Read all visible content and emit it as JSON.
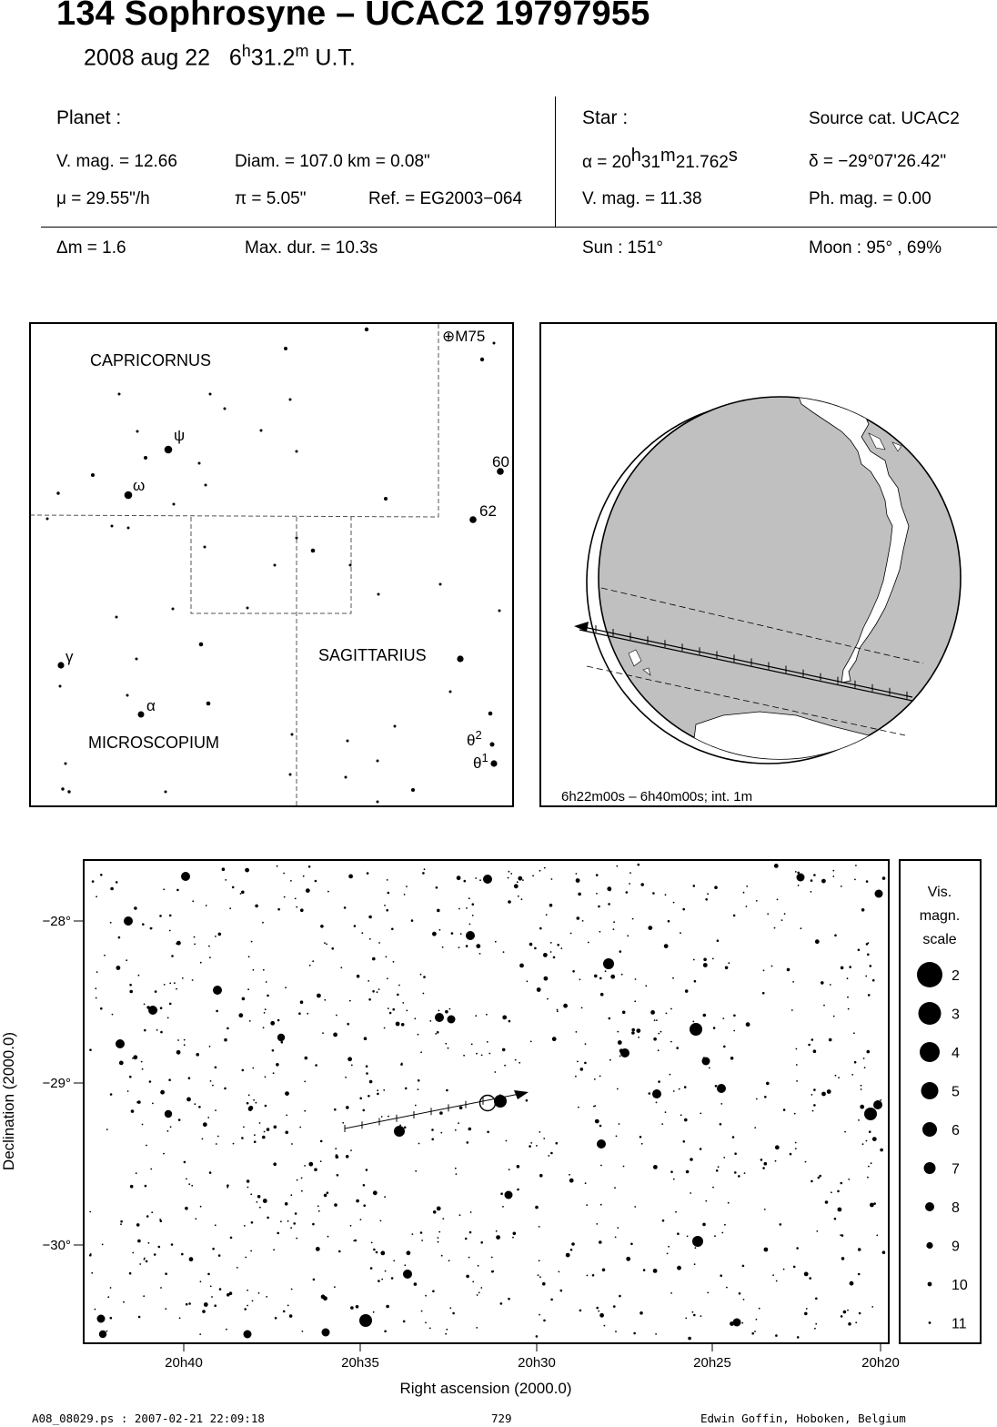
{
  "header": {
    "title": "134 Sophrosyne  –  UCAC2 19797955",
    "date": "2008 aug 22",
    "time_h": "6",
    "time_sup_h": "h",
    "time_mid": "31.2",
    "time_sup_m": "m",
    "time_ut": " U.T."
  },
  "planet": {
    "label": "Planet :",
    "vmag": "V. mag. = 12.66",
    "diam": "Diam. = 107.0 km = 0.08\"",
    "mu": "μ =  29.55\"/h",
    "pi": "π =  5.05\"",
    "ref": "Ref. = EG2003−064"
  },
  "star": {
    "label": "Star :",
    "source": "Source cat.  UCAC2",
    "alpha_a": "α = 20",
    "alpha_h": "h",
    "alpha_b": "31",
    "alpha_m": "m",
    "alpha_c": "21.762",
    "alpha_s": "s",
    "delta": "δ = −29°07'26.42\"",
    "vmag": "V. mag. = 11.38",
    "phmag": "Ph. mag. =  0.00"
  },
  "summary": {
    "dm": "Δm = 1.6",
    "maxdur": "Max. dur. = 10.3s",
    "sun": "Sun : 151°",
    "moon": "Moon :  95° , 69%"
  },
  "finder": {
    "constellations": [
      "CAPRICORNUS",
      "SAGITTARIUS",
      "MICROSCOPIUM"
    ],
    "labels": {
      "m75": "⊕M75",
      "s60": "60",
      "s62": "62",
      "psi": "ψ",
      "omega": "ω",
      "gamma": "γ",
      "alpha": "α",
      "theta2": "θ",
      "theta2_sup": "2",
      "theta1": "θ",
      "theta1_sup": "1"
    }
  },
  "globe": {
    "caption": "6h22m00s –  6h40m00s; int.  1m"
  },
  "starmap": {
    "x_ticks": [
      "20h40",
      "20h35",
      "20h30",
      "20h25",
      "20h20"
    ],
    "y_ticks": [
      "−28°",
      "−29°",
      "−30°"
    ],
    "xlabel": "Right ascension (2000.0)",
    "ylabel": "Declination (2000.0)"
  },
  "legend": {
    "title_lines": [
      "Vis.",
      "magn.",
      "scale"
    ],
    "mags": [
      "2",
      "3",
      "4",
      "5",
      "6",
      "7",
      "8",
      "9",
      "10",
      "11"
    ]
  },
  "footer": {
    "file": "A08_08029.ps : 2007-02-21 22:09:18",
    "page": "729",
    "author": "Edwin Goffin, Hoboken, Belgium"
  }
}
